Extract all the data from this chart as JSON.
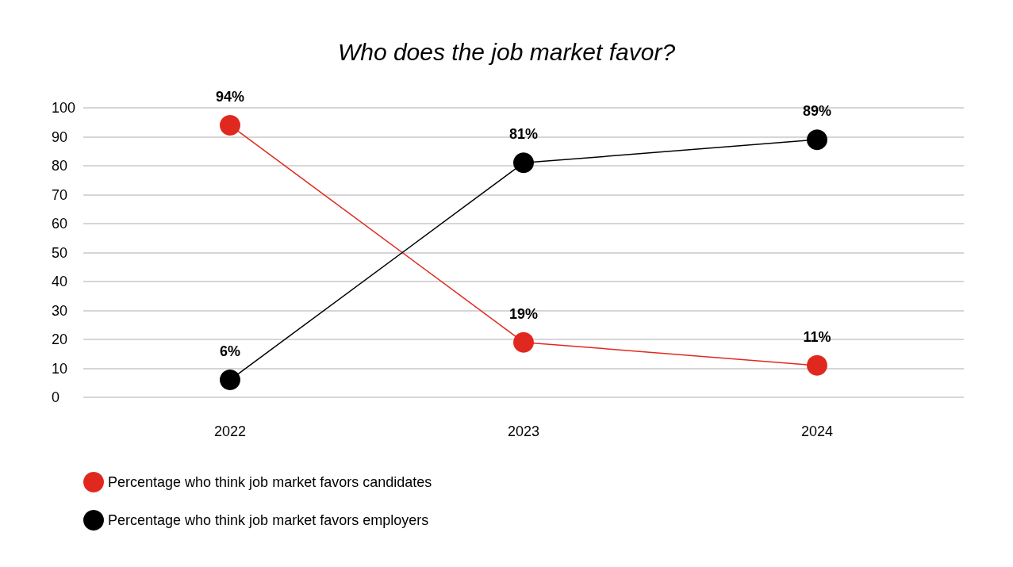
{
  "chart_data": {
    "type": "line",
    "title": "Who does the job market favor?",
    "categories": [
      "2022",
      "2023",
      "2024"
    ],
    "series": [
      {
        "name": "Percentage who think job market favors candidates",
        "color": "#e0281e",
        "values": [
          94,
          19,
          11
        ],
        "value_labels": [
          "94%",
          "19%",
          "11%"
        ]
      },
      {
        "name": "Percentage who think job market favors employers",
        "color": "#000000",
        "values": [
          6,
          81,
          89
        ],
        "value_labels": [
          "6%",
          "81%",
          "89%"
        ]
      }
    ],
    "ylim": [
      0,
      100
    ],
    "yticks": [
      0,
      10,
      20,
      30,
      40,
      50,
      60,
      70,
      80,
      90,
      100
    ],
    "grid": "y",
    "legend": "bottom left",
    "marker": "circle",
    "line_style": "solid"
  }
}
